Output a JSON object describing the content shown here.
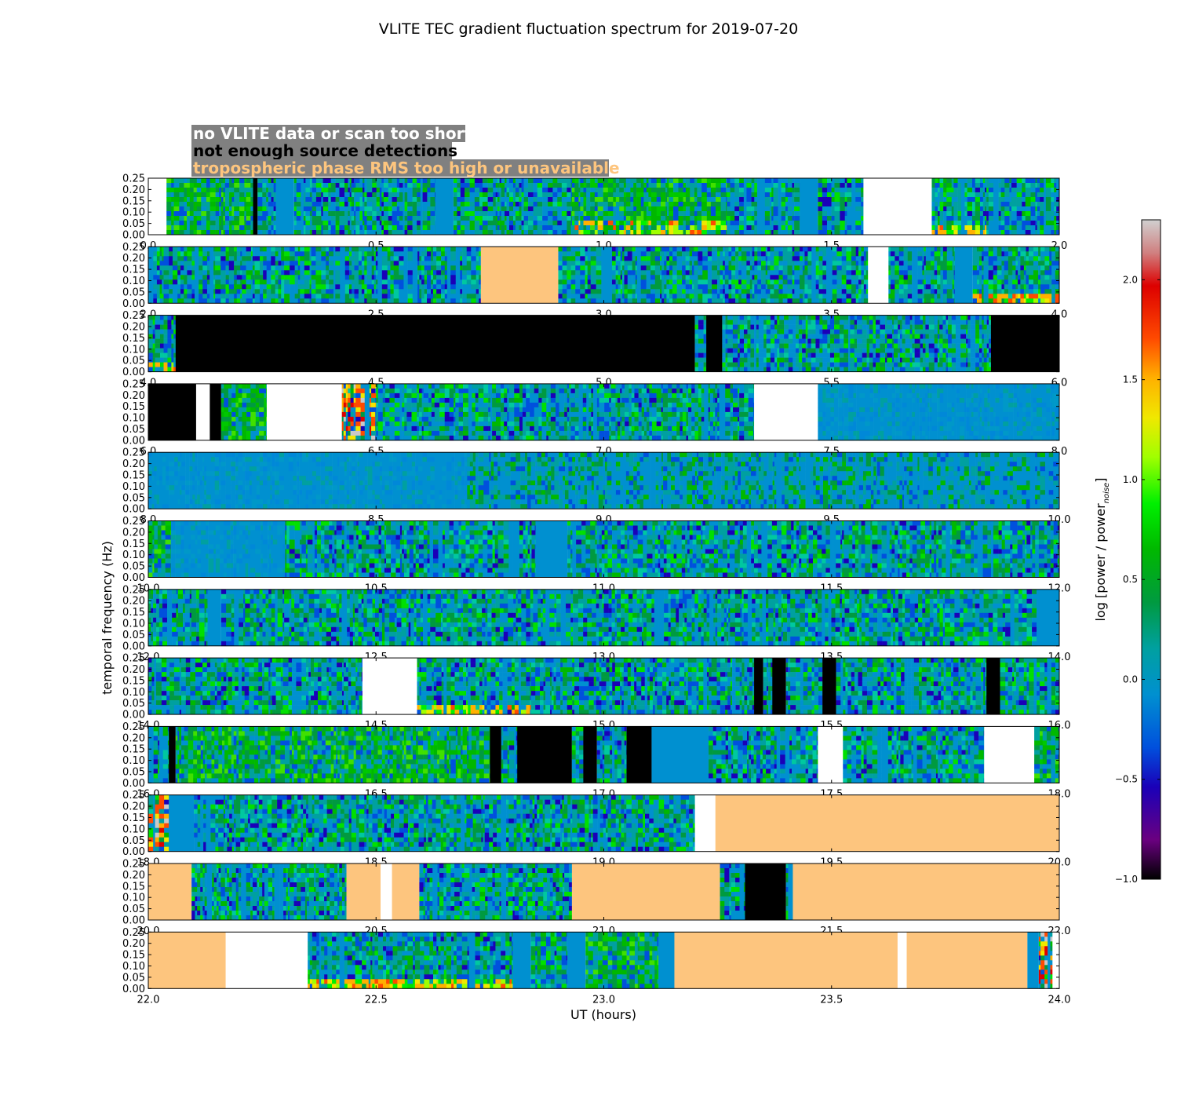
{
  "chart_data": {
    "type": "heatmap",
    "title": "VLITE TEC gradient fluctuation spectrum for 2019-07-20",
    "xlabel": "UT (hours)",
    "ylabel": "temporal frequency (Hz)",
    "colorbar": {
      "label": "log [power / power",
      "label_subscript": "noise",
      "label_close": "]",
      "range": [
        -1.0,
        2.3
      ],
      "ticks": [
        "2.0",
        "1.5",
        "1.0",
        "0.5",
        "0.0",
        "−0.5",
        "−1.0"
      ],
      "tick_values": [
        2.0,
        1.5,
        1.0,
        0.5,
        0.0,
        -0.5,
        -1.0
      ],
      "colormap": "nipy_spectral"
    },
    "legend": [
      {
        "text": "no VLITE data or scan too short",
        "color": "#ffffff"
      },
      {
        "text": "not enough source detections",
        "color": "#000000"
      },
      {
        "text": "tropospheric phase RMS too high or unavailable",
        "color": "#fdc57e"
      }
    ],
    "ylim": [
      0.0,
      0.25
    ],
    "ytick_labels": [
      "0.00",
      "0.05",
      "0.10",
      "0.15",
      "0.20",
      "0.25"
    ],
    "flag_colors": {
      "white": "#ffffff",
      "black": "#000000",
      "orange": "#fdc57e",
      "blue": "#0090d0",
      "gray": "#c8c8c8"
    },
    "panels": [
      {
        "xlim": [
          0,
          2
        ],
        "xticks": [
          "0.0",
          "0.5",
          "1.0",
          "1.5",
          "2.0"
        ],
        "segments": [
          {
            "t0": 0.0,
            "t1": 0.04,
            "kind": "white"
          },
          {
            "t0": 0.04,
            "t1": 0.23,
            "kind": "data",
            "level": "green"
          },
          {
            "t0": 0.23,
            "t1": 0.24,
            "kind": "black"
          },
          {
            "t0": 0.24,
            "t1": 0.28,
            "kind": "data"
          },
          {
            "t0": 0.28,
            "t1": 0.32,
            "kind": "blue"
          },
          {
            "t0": 0.32,
            "t1": 0.63,
            "kind": "data"
          },
          {
            "t0": 0.63,
            "t1": 0.67,
            "kind": "blue"
          },
          {
            "t0": 0.67,
            "t1": 0.93,
            "kind": "data"
          },
          {
            "t0": 0.93,
            "t1": 1.27,
            "kind": "data",
            "level": "green",
            "hot": "low"
          },
          {
            "t0": 1.27,
            "t1": 1.43,
            "kind": "data"
          },
          {
            "t0": 1.43,
            "t1": 1.47,
            "kind": "blue"
          },
          {
            "t0": 1.47,
            "t1": 1.57,
            "kind": "data"
          },
          {
            "t0": 1.57,
            "t1": 1.72,
            "kind": "white"
          },
          {
            "t0": 1.72,
            "t1": 1.84,
            "kind": "data",
            "hot": "bottom"
          },
          {
            "t0": 1.84,
            "t1": 2.0,
            "kind": "data"
          }
        ]
      },
      {
        "xlim": [
          2,
          4
        ],
        "xticks": [
          "2.0",
          "2.5",
          "3.0",
          "3.5",
          "4.0"
        ],
        "segments": [
          {
            "t0": 2.0,
            "t1": 2.73,
            "kind": "data"
          },
          {
            "t0": 2.73,
            "t1": 2.9,
            "kind": "orange"
          },
          {
            "t0": 2.9,
            "t1": 3.58,
            "kind": "data"
          },
          {
            "t0": 3.58,
            "t1": 3.625,
            "kind": "white"
          },
          {
            "t0": 3.625,
            "t1": 3.77,
            "kind": "data"
          },
          {
            "t0": 3.77,
            "t1": 3.81,
            "kind": "blue"
          },
          {
            "t0": 3.81,
            "t1": 4.0,
            "kind": "data",
            "hot": "bottom"
          }
        ]
      },
      {
        "xlim": [
          4,
          6
        ],
        "xticks": [
          "4.0",
          "4.5",
          "5.0",
          "5.5",
          "6.0"
        ],
        "segments": [
          {
            "t0": 4.0,
            "t1": 4.06,
            "kind": "data",
            "hot": "bottom"
          },
          {
            "t0": 4.06,
            "t1": 5.2,
            "kind": "black"
          },
          {
            "t0": 5.2,
            "t1": 5.225,
            "kind": "data"
          },
          {
            "t0": 5.225,
            "t1": 5.26,
            "kind": "black"
          },
          {
            "t0": 5.26,
            "t1": 5.85,
            "kind": "data"
          },
          {
            "t0": 5.85,
            "t1": 6.0,
            "kind": "black"
          }
        ]
      },
      {
        "xlim": [
          6,
          8
        ],
        "xticks": [
          "6.0",
          "6.5",
          "7.0",
          "7.5",
          "8.0"
        ],
        "segments": [
          {
            "t0": 6.0,
            "t1": 6.105,
            "kind": "black"
          },
          {
            "t0": 6.105,
            "t1": 6.135,
            "kind": "white"
          },
          {
            "t0": 6.135,
            "t1": 6.16,
            "kind": "black"
          },
          {
            "t0": 6.16,
            "t1": 6.26,
            "kind": "data",
            "level": "green"
          },
          {
            "t0": 6.26,
            "t1": 6.425,
            "kind": "white"
          },
          {
            "t0": 6.425,
            "t1": 6.5,
            "kind": "gray",
            "hot": "full"
          },
          {
            "t0": 6.5,
            "t1": 7.33,
            "kind": "data"
          },
          {
            "t0": 7.33,
            "t1": 7.47,
            "kind": "white"
          },
          {
            "t0": 7.47,
            "t1": 8.0,
            "kind": "data",
            "level": "blue"
          }
        ]
      },
      {
        "xlim": [
          8,
          10
        ],
        "xticks": [
          "8.0",
          "8.5",
          "9.0",
          "9.5",
          "10.0"
        ],
        "segments": [
          {
            "t0": 8.0,
            "t1": 8.7,
            "kind": "data",
            "level": "blue"
          },
          {
            "t0": 8.7,
            "t1": 9.6,
            "kind": "data",
            "level": "blue2"
          },
          {
            "t0": 9.6,
            "t1": 10.0,
            "kind": "data",
            "level": "blue2"
          }
        ]
      },
      {
        "xlim": [
          10,
          12
        ],
        "xticks": [
          "10.0",
          "10.5",
          "11.0",
          "11.5",
          "12.0"
        ],
        "segments": [
          {
            "t0": 10.0,
            "t1": 10.05,
            "kind": "data",
            "level": "green"
          },
          {
            "t0": 10.05,
            "t1": 10.3,
            "kind": "data",
            "level": "blue"
          },
          {
            "t0": 10.3,
            "t1": 10.85,
            "kind": "data"
          },
          {
            "t0": 10.85,
            "t1": 10.92,
            "kind": "blue"
          },
          {
            "t0": 10.92,
            "t1": 12.0,
            "kind": "data"
          }
        ]
      },
      {
        "xlim": [
          12,
          14
        ],
        "xticks": [
          "12.0",
          "12.5",
          "13.0",
          "13.5",
          "14.0"
        ],
        "segments": [
          {
            "t0": 12.0,
            "t1": 12.13,
            "kind": "data"
          },
          {
            "t0": 12.13,
            "t1": 12.16,
            "kind": "blue"
          },
          {
            "t0": 12.16,
            "t1": 13.0,
            "kind": "data"
          },
          {
            "t0": 13.0,
            "t1": 13.95,
            "kind": "data"
          },
          {
            "t0": 13.95,
            "t1": 14.0,
            "kind": "blue"
          }
        ]
      },
      {
        "xlim": [
          14,
          16
        ],
        "xticks": [
          "14.0",
          "14.5",
          "15.0",
          "15.5",
          "16.0"
        ],
        "segments": [
          {
            "t0": 14.0,
            "t1": 14.47,
            "kind": "data"
          },
          {
            "t0": 14.47,
            "t1": 14.59,
            "kind": "white"
          },
          {
            "t0": 14.59,
            "t1": 14.84,
            "kind": "data",
            "hot": "bottom"
          },
          {
            "t0": 14.84,
            "t1": 15.33,
            "kind": "data"
          },
          {
            "t0": 15.33,
            "t1": 15.35,
            "kind": "black"
          },
          {
            "t0": 15.35,
            "t1": 15.37,
            "kind": "data"
          },
          {
            "t0": 15.37,
            "t1": 15.4,
            "kind": "black"
          },
          {
            "t0": 15.4,
            "t1": 15.48,
            "kind": "data"
          },
          {
            "t0": 15.48,
            "t1": 15.51,
            "kind": "black"
          },
          {
            "t0": 15.51,
            "t1": 15.84,
            "kind": "data"
          },
          {
            "t0": 15.84,
            "t1": 15.87,
            "kind": "black"
          },
          {
            "t0": 15.87,
            "t1": 16.0,
            "kind": "data"
          }
        ]
      },
      {
        "xlim": [
          16,
          18
        ],
        "xticks": [
          "16.0",
          "16.5",
          "17.0",
          "17.5",
          "18.0"
        ],
        "segments": [
          {
            "t0": 16.0,
            "t1": 16.045,
            "kind": "data"
          },
          {
            "t0": 16.045,
            "t1": 16.06,
            "kind": "black"
          },
          {
            "t0": 16.06,
            "t1": 16.75,
            "kind": "data",
            "level": "green"
          },
          {
            "t0": 16.75,
            "t1": 16.775,
            "kind": "black"
          },
          {
            "t0": 16.775,
            "t1": 16.81,
            "kind": "data"
          },
          {
            "t0": 16.81,
            "t1": 16.93,
            "kind": "black"
          },
          {
            "t0": 16.93,
            "t1": 16.955,
            "kind": "data"
          },
          {
            "t0": 16.955,
            "t1": 16.985,
            "kind": "black"
          },
          {
            "t0": 16.985,
            "t1": 17.05,
            "kind": "data"
          },
          {
            "t0": 17.05,
            "t1": 17.105,
            "kind": "black"
          },
          {
            "t0": 17.105,
            "t1": 17.23,
            "kind": "blue"
          },
          {
            "t0": 17.23,
            "t1": 17.47,
            "kind": "data"
          },
          {
            "t0": 17.47,
            "t1": 17.525,
            "kind": "white"
          },
          {
            "t0": 17.525,
            "t1": 17.835,
            "kind": "data"
          },
          {
            "t0": 17.835,
            "t1": 17.945,
            "kind": "white"
          },
          {
            "t0": 17.945,
            "t1": 18.0,
            "kind": "data",
            "level": "green"
          }
        ]
      },
      {
        "xlim": [
          18,
          20
        ],
        "xticks": [
          "18.0",
          "18.5",
          "19.0",
          "19.5",
          "20.0"
        ],
        "segments": [
          {
            "t0": 18.0,
            "t1": 18.045,
            "kind": "data",
            "hot": "full"
          },
          {
            "t0": 18.045,
            "t1": 18.1,
            "kind": "blue"
          },
          {
            "t0": 18.1,
            "t1": 19.2,
            "kind": "data"
          },
          {
            "t0": 19.2,
            "t1": 19.245,
            "kind": "white"
          },
          {
            "t0": 19.245,
            "t1": 20.0,
            "kind": "orange"
          }
        ]
      },
      {
        "xlim": [
          20,
          22
        ],
        "xticks": [
          "20.0",
          "20.5",
          "21.0",
          "21.5",
          "22.0"
        ],
        "segments": [
          {
            "t0": 20.0,
            "t1": 20.095,
            "kind": "orange"
          },
          {
            "t0": 20.095,
            "t1": 20.435,
            "kind": "data"
          },
          {
            "t0": 20.435,
            "t1": 20.51,
            "kind": "orange"
          },
          {
            "t0": 20.51,
            "t1": 20.535,
            "kind": "white"
          },
          {
            "t0": 20.535,
            "t1": 20.595,
            "kind": "orange"
          },
          {
            "t0": 20.595,
            "t1": 20.93,
            "kind": "data"
          },
          {
            "t0": 20.93,
            "t1": 21.255,
            "kind": "orange"
          },
          {
            "t0": 21.255,
            "t1": 21.31,
            "kind": "data"
          },
          {
            "t0": 21.31,
            "t1": 21.4,
            "kind": "black"
          },
          {
            "t0": 21.4,
            "t1": 21.415,
            "kind": "data"
          },
          {
            "t0": 21.415,
            "t1": 22.0,
            "kind": "orange"
          }
        ]
      },
      {
        "xlim": [
          22,
          24
        ],
        "xticks": [
          "22.0",
          "22.5",
          "23.0",
          "23.5",
          "24.0"
        ],
        "segments": [
          {
            "t0": 22.0,
            "t1": 22.17,
            "kind": "orange"
          },
          {
            "t0": 22.17,
            "t1": 22.35,
            "kind": "white"
          },
          {
            "t0": 22.35,
            "t1": 22.8,
            "kind": "data",
            "hot": "bottom"
          },
          {
            "t0": 22.8,
            "t1": 22.84,
            "kind": "blue"
          },
          {
            "t0": 22.84,
            "t1": 22.92,
            "kind": "data"
          },
          {
            "t0": 22.92,
            "t1": 22.96,
            "kind": "blue"
          },
          {
            "t0": 22.96,
            "t1": 23.12,
            "kind": "data",
            "level": "green"
          },
          {
            "t0": 23.12,
            "t1": 23.155,
            "kind": "blue"
          },
          {
            "t0": 23.155,
            "t1": 23.645,
            "kind": "orange"
          },
          {
            "t0": 23.645,
            "t1": 23.665,
            "kind": "white"
          },
          {
            "t0": 23.665,
            "t1": 23.93,
            "kind": "orange"
          },
          {
            "t0": 23.93,
            "t1": 23.955,
            "kind": "blue"
          },
          {
            "t0": 23.955,
            "t1": 23.985,
            "kind": "data",
            "hot": "full"
          },
          {
            "t0": 23.985,
            "t1": 24.0,
            "kind": "white"
          }
        ]
      }
    ]
  }
}
